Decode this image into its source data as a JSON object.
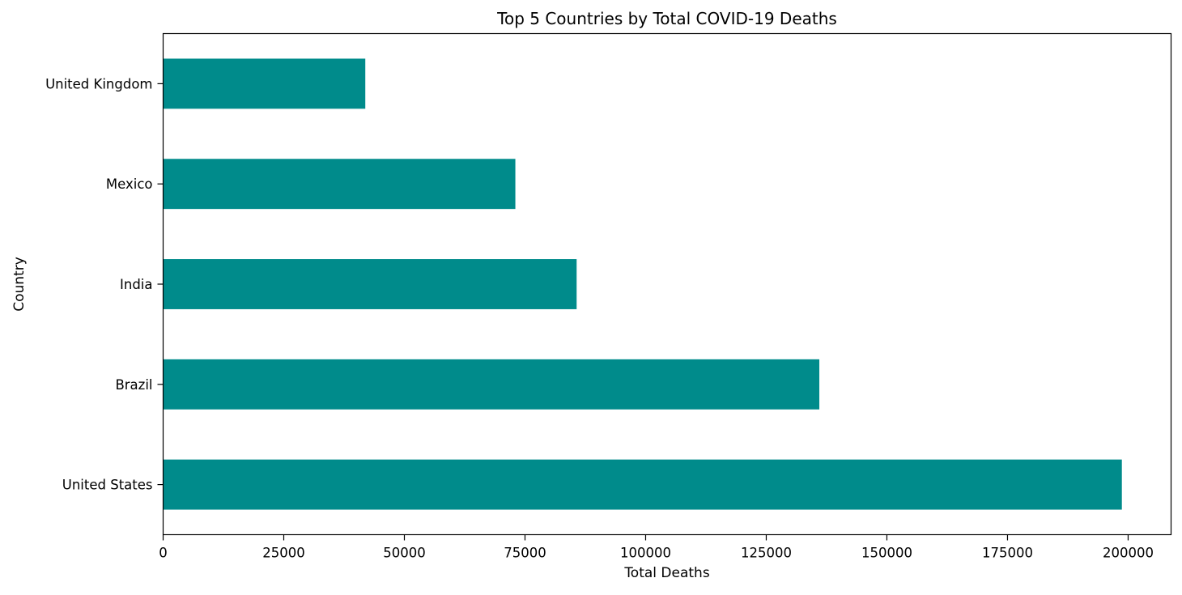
{
  "chart_data": {
    "type": "bar",
    "orientation": "horizontal",
    "title": "Top 5 Countries by Total COVID-19 Deaths",
    "xlabel": "Total Deaths",
    "ylabel": "Country",
    "categories": [
      "United States",
      "Brazil",
      "India",
      "Mexico",
      "United Kingdom"
    ],
    "values": [
      198700,
      136000,
      85700,
      73000,
      41900
    ],
    "xlim": [
      0,
      208900
    ],
    "xticks": [
      0,
      25000,
      50000,
      75000,
      100000,
      125000,
      150000,
      175000,
      200000
    ],
    "xtick_labels": [
      "0",
      "25000",
      "50000",
      "75000",
      "100000",
      "125000",
      "150000",
      "175000",
      "200000"
    ],
    "bar_color": "#008b8b",
    "grid": false,
    "legend": "none"
  }
}
